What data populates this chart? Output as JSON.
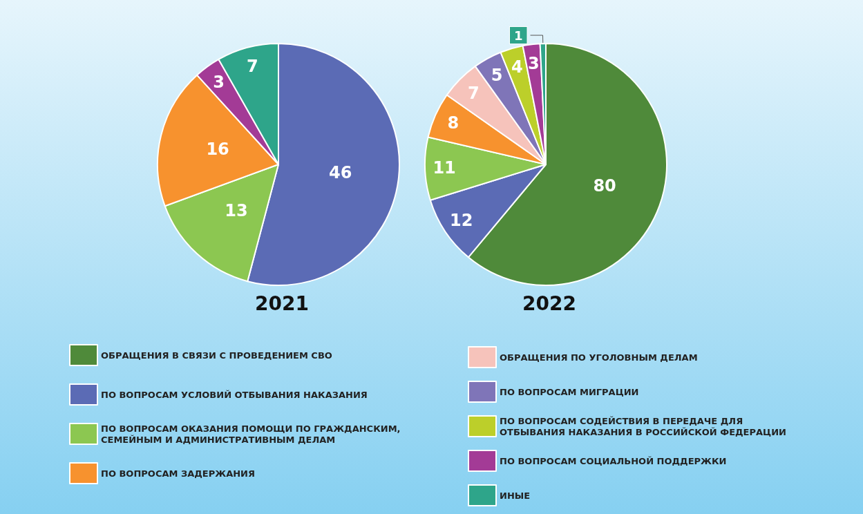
{
  "chart_data": {
    "type": "pie",
    "categories": [
      "ОБРАЩЕНИЯ В СВЯЗИ С ПРОВЕДЕНИЕМ СВО",
      "ПО ВОПРОСАМ УСЛОВИЙ ОТБЫВАНИЯ НАКАЗАНИЯ",
      "ПО ВОПРОСАМ ОКАЗАНИЯ ПОМОЩИ ПО ГРАЖДАНСКИМ, СЕМЕЙНЫМ И АДМИНИСТРАТИВНЫМ ДЕЛАМ",
      "ПО ВОПРОСАМ ЗАДЕРЖАНИЯ",
      "ОБРАЩЕНИЯ ПО УГОЛОВНЫМ ДЕЛАМ",
      "ПО ВОПРОСАМ МИГРАЦИИ",
      "ПО ВОПРОСАМ СОДЕЙСТВИЯ В ПЕРЕДАЧЕ ДЛЯ ОТБЫВАНИЯ НАКАЗАНИЯ В РОССИЙСКОЙ ФЕДЕРАЦИИ",
      "ПО ВОПРОСАМ СОЦИАЛЬНОЙ ПОДДЕРЖКИ",
      "ИНЫЕ"
    ],
    "colors": [
      "#4f8a3a",
      "#5b6bb5",
      "#8cc751",
      "#f7922e",
      "#f6c3bb",
      "#7f75b8",
      "#bccf2a",
      "#a33b96",
      "#2ea58a"
    ],
    "series": [
      {
        "name": "2021",
        "values": [
          null,
          46,
          13,
          16,
          null,
          null,
          null,
          3,
          7
        ]
      },
      {
        "name": "2022",
        "values": [
          80,
          12,
          11,
          8,
          7,
          5,
          4,
          3,
          1
        ]
      }
    ],
    "data_labels": true,
    "legend": "bottom"
  }
}
